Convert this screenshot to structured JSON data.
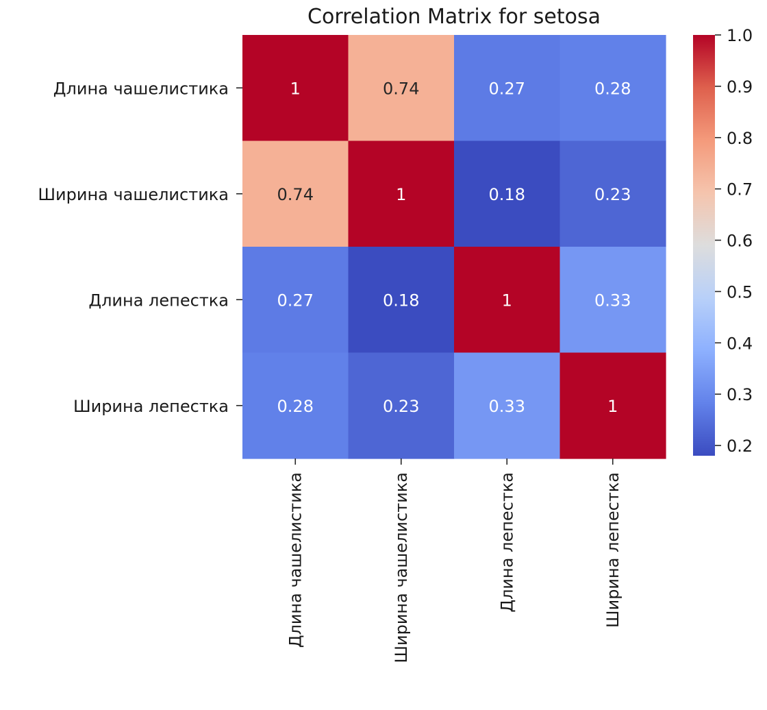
{
  "chart_data": {
    "type": "heatmap",
    "title": "Correlation Matrix for setosa",
    "row_labels": [
      "Длина чашелистика",
      "Ширина чашелистика",
      "Длина лепестка",
      "Ширина лепестка"
    ],
    "col_labels": [
      "Длина чашелистика",
      "Ширина чашелистика",
      "Длина лепестка",
      "Ширина лепестка"
    ],
    "values": [
      [
        1.0,
        0.74,
        0.27,
        0.28
      ],
      [
        0.74,
        1.0,
        0.18,
        0.23
      ],
      [
        0.27,
        0.18,
        1.0,
        0.33
      ],
      [
        0.28,
        0.23,
        0.33,
        1.0
      ]
    ],
    "annotations": [
      [
        "1",
        "0.74",
        "0.27",
        "0.28"
      ],
      [
        "0.74",
        "1",
        "0.18",
        "0.23"
      ],
      [
        "0.27",
        "0.18",
        "1",
        "0.33"
      ],
      [
        "0.28",
        "0.23",
        "0.33",
        "1"
      ]
    ],
    "colormap": "coolwarm",
    "colorbar": {
      "range": [
        0.18,
        1.0
      ],
      "ticks": [
        0.2,
        0.3,
        0.4,
        0.5,
        0.6,
        0.7,
        0.8,
        0.9,
        1.0
      ],
      "tick_labels": [
        "0.2",
        "0.3",
        "0.4",
        "0.5",
        "0.6",
        "0.7",
        "0.8",
        "0.9",
        "1.0"
      ]
    },
    "xlabel": "",
    "ylabel": ""
  }
}
